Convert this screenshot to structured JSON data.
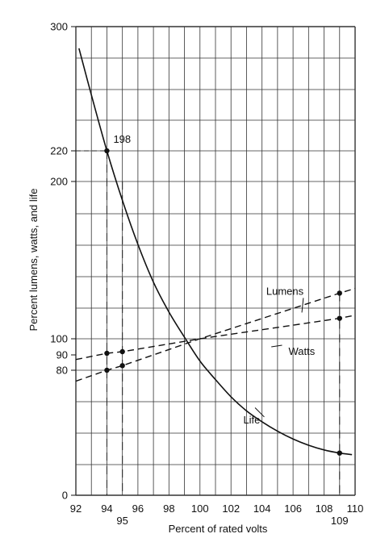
{
  "chart_data": {
    "type": "line",
    "xlabel": "Percent of rated volts",
    "ylabel": "Percent lumens, watts, and life",
    "xlim": [
      92,
      110
    ],
    "ylim": [
      0,
      300
    ],
    "grid": true,
    "x_ticks": [
      "92",
      "94",
      "96",
      "98",
      "100",
      "102",
      "104",
      "106",
      "108",
      "110"
    ],
    "x_ticks_extra": [
      "95",
      "109"
    ],
    "y_ticks": [
      "0",
      "80",
      "90",
      "100",
      "200",
      "220",
      "300"
    ],
    "series": [
      {
        "name": "Life",
        "style": "solid",
        "x": [
          92.2,
          93,
          94,
          95,
          96,
          97,
          98,
          99,
          100,
          101,
          102,
          103,
          104,
          105,
          106,
          107,
          108,
          109,
          109.8
        ],
        "y": [
          286,
          256,
          220,
          188,
          160,
          136,
          117,
          101,
          86,
          74,
          63,
          54,
          47,
          41,
          36,
          32,
          29,
          27,
          26
        ]
      },
      {
        "name": "Lumens",
        "style": "dashed",
        "x": [
          92,
          94,
          95,
          100,
          109,
          110
        ],
        "y": [
          73,
          80,
          83,
          100,
          129,
          132
        ]
      },
      {
        "name": "Watts",
        "style": "dashed",
        "x": [
          92,
          94,
          95,
          100,
          109,
          110
        ],
        "y": [
          87,
          91,
          92,
          100,
          113,
          115
        ]
      }
    ],
    "markers": [
      {
        "x": 94,
        "y": 220
      },
      {
        "x": 94,
        "y": 91
      },
      {
        "x": 94,
        "y": 80
      },
      {
        "x": 95,
        "y": 92
      },
      {
        "x": 95,
        "y": 83
      },
      {
        "x": 109,
        "y": 129
      },
      {
        "x": 109,
        "y": 113
      },
      {
        "x": 109,
        "y": 27
      }
    ],
    "guides": [
      {
        "x": 94,
        "y": 220
      },
      {
        "x": 95,
        "y": 200
      },
      {
        "x": 109,
        "y": 129
      }
    ],
    "annotations": [
      {
        "text": "198",
        "x": 94,
        "y": 220
      },
      {
        "text": "Lumens",
        "x": 105,
        "y": 129
      },
      {
        "text": "Watts",
        "x": 105.5,
        "y": 92
      },
      {
        "text": "Life",
        "x": 103,
        "y": 47
      }
    ]
  }
}
